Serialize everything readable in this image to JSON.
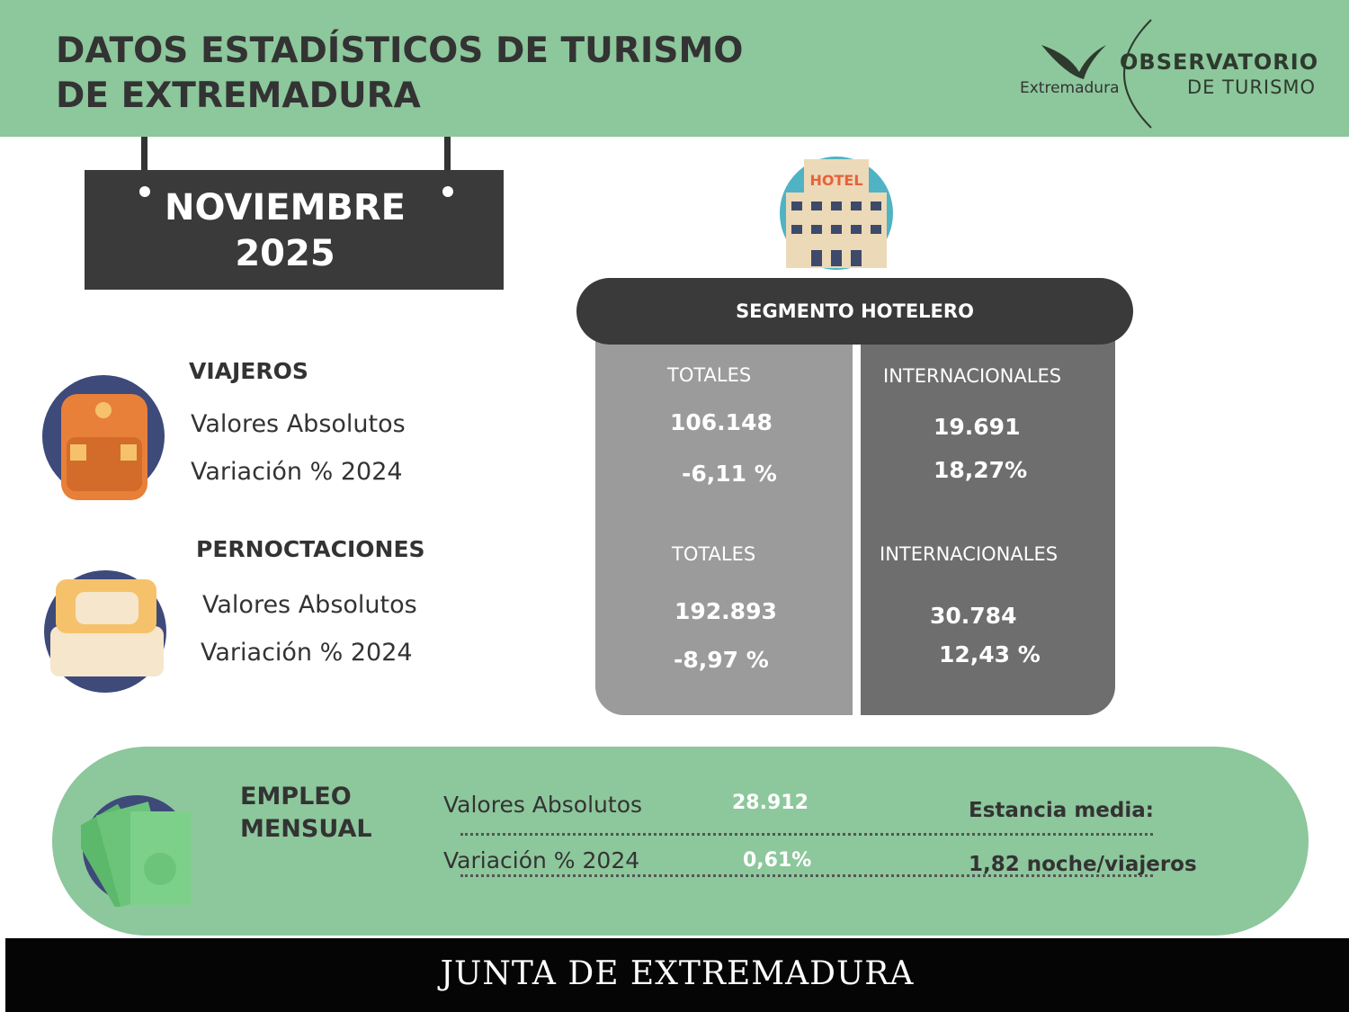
{
  "header": {
    "title_lines": [
      "DATOS ESTADÍSTICOS DE TURISMO",
      "DE EXTREMADURA"
    ],
    "logo": {
      "region": "Extremadura",
      "name": "OBSERVATORIO",
      "subname": "DE TURISMO"
    }
  },
  "period": {
    "month": "NOVIEMBRE",
    "year": "2025"
  },
  "hotel_icon_label": "HOTEL",
  "segment": {
    "title": "SEGMENTO HOTELERO"
  },
  "sections": [
    {
      "title": "VIAJEROS",
      "rows": [
        "Valores Absolutos",
        "Variación % 2024"
      ],
      "totales": {
        "header": "TOTALES",
        "absolute": "106.148",
        "variation": "-6,11 %"
      },
      "internacionales": {
        "header": "INTERNACIONALES",
        "absolute": "19.691",
        "variation": "18,27%"
      }
    },
    {
      "title": "PERNOCTACIONES",
      "rows": [
        "Valores Absolutos",
        "Variación % 2024"
      ],
      "totales": {
        "header": "TOTALES",
        "absolute": "192.893",
        "variation": "-8,97 %"
      },
      "internacionales": {
        "header": "INTERNACIONALES",
        "absolute": "30.784",
        "variation": "12,43 %"
      }
    }
  ],
  "empleo": {
    "title_lines": [
      "EMPLEO",
      "MENSUAL"
    ],
    "rows": [
      {
        "label": "Valores Absolutos",
        "value": "28.912"
      },
      {
        "label": "Variación % 2024",
        "value": "0,61%"
      }
    ],
    "estancia_label": "Estancia media:",
    "estancia_value": "1,82 noche/viajeros"
  },
  "footer": {
    "text": "JUNTA DE EXTREMADURA"
  }
}
